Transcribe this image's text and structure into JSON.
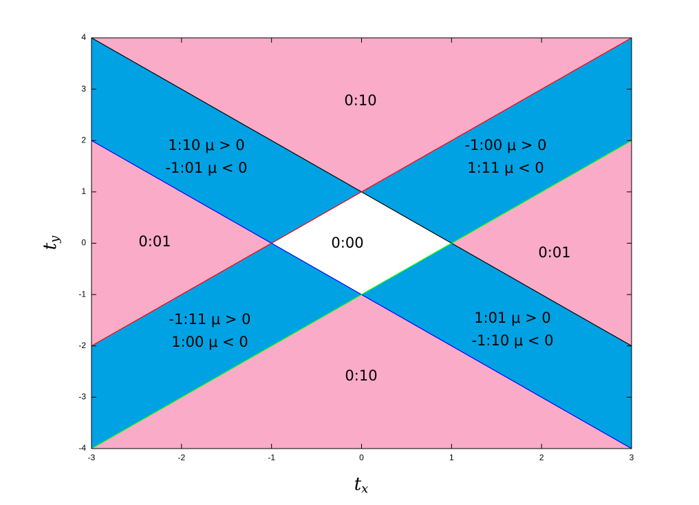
{
  "chart_data": {
    "type": "region",
    "xlabel": {
      "text": "t",
      "subscript": "x"
    },
    "ylabel": {
      "text": "t",
      "subscript": "y"
    },
    "xlim": [
      -3,
      3
    ],
    "ylim": [
      -4,
      4
    ],
    "xticks": [
      -3,
      -2,
      -1,
      0,
      1,
      2,
      3
    ],
    "yticks": [
      -4,
      -3,
      -2,
      -1,
      0,
      1,
      2,
      3,
      4
    ],
    "regions": [
      {
        "x": [
          -3,
          3,
          0
        ],
        "y": [
          4,
          4,
          1
        ],
        "color": "#f9abc8",
        "label": [
          "0:10"
        ]
      },
      {
        "x": [
          -3,
          0,
          -1,
          -3
        ],
        "y": [
          4,
          1,
          0,
          2
        ],
        "color": "#00a2e3",
        "label": [
          "1:10   μ > 0",
          "-1:01   μ < 0"
        ]
      },
      {
        "x": [
          3,
          3,
          1,
          0
        ],
        "y": [
          4,
          2,
          0,
          1
        ],
        "color": "#00a2e3",
        "label": [
          "-1:00   μ > 0",
          "1:11   μ < 0"
        ]
      },
      {
        "x": [
          -3,
          -1,
          -3
        ],
        "y": [
          2,
          0,
          -2
        ],
        "color": "#f9abc8",
        "label": [
          "0:01"
        ]
      },
      {
        "x": [
          0,
          1,
          0,
          -1
        ],
        "y": [
          1,
          0,
          -1,
          0
        ],
        "color": "#ffffff",
        "label": [
          "0:00"
        ]
      },
      {
        "x": [
          3,
          1,
          3
        ],
        "y": [
          2,
          0,
          -2
        ],
        "color": "#f9abc8",
        "label": [
          "0:01"
        ]
      },
      {
        "x": [
          -3,
          -1,
          0,
          -3
        ],
        "y": [
          -2,
          0,
          -1,
          -4
        ],
        "color": "#00a2e3",
        "label": [
          "-1:11   μ > 0",
          "1:00   μ < 0"
        ]
      },
      {
        "x": [
          3,
          3,
          0,
          1
        ],
        "y": [
          -2,
          -4,
          -1,
          0
        ],
        "color": "#00a2e3",
        "label": [
          "1:01   μ > 0",
          "-1:10   μ < 0"
        ]
      },
      {
        "x": [
          -3,
          3,
          0
        ],
        "y": [
          -4,
          -4,
          -1
        ],
        "color": "#f9abc8",
        "label": [
          "0:10"
        ]
      }
    ],
    "boundaries": [
      {
        "x": [
          -3,
          3
        ],
        "y": [
          4,
          -2
        ],
        "color": "#000000"
      },
      {
        "x": [
          -3,
          3
        ],
        "y": [
          2,
          -4
        ],
        "color": "#0000ff"
      },
      {
        "x": [
          -3,
          3
        ],
        "y": [
          -2,
          4
        ],
        "color": "#ff0000"
      },
      {
        "x": [
          -3,
          3
        ],
        "y": [
          -4,
          2
        ],
        "color": "#00ff00"
      }
    ]
  }
}
